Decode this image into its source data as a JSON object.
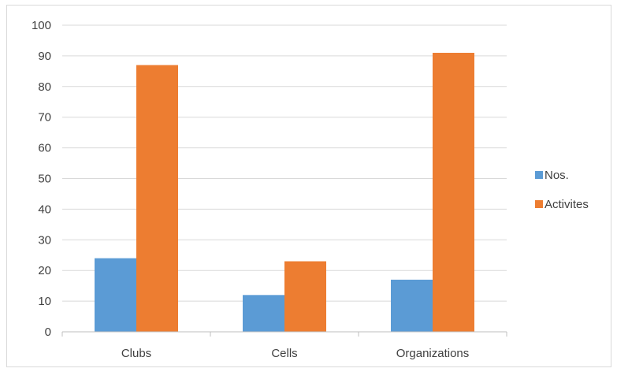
{
  "chart_data": {
    "type": "bar",
    "categories": [
      "Clubs",
      "Cells",
      "Organizations"
    ],
    "series": [
      {
        "name": "Nos.",
        "values": [
          24,
          12,
          17
        ],
        "color": "#5b9bd5"
      },
      {
        "name": "Activites",
        "values": [
          87,
          23,
          91
        ],
        "color": "#ed7d31"
      }
    ],
    "title": "",
    "xlabel": "",
    "ylabel": "",
    "ylim": [
      0,
      100
    ],
    "yticks": [
      0,
      10,
      20,
      30,
      40,
      50,
      60,
      70,
      80,
      90,
      100
    ],
    "grid": true,
    "legend_position": "right"
  }
}
